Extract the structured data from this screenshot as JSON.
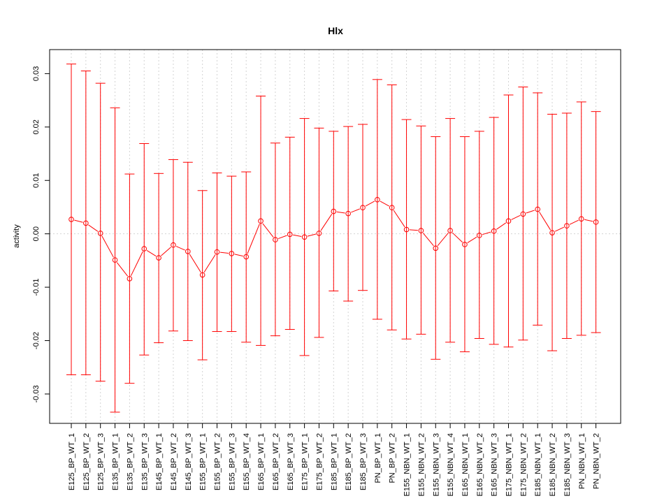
{
  "chart_data": {
    "type": "line",
    "title": "Hlx",
    "xlabel": "",
    "ylabel": "activity",
    "ylim": [
      -0.0355,
      0.0345
    ],
    "yticks": [
      -0.03,
      -0.02,
      -0.01,
      0.0,
      0.01,
      0.02,
      0.03
    ],
    "ytick_labels": [
      "-0.03",
      "-0.02",
      "-0.01",
      "0.00",
      "0.01",
      "0.02",
      "0.03"
    ],
    "grid": true,
    "series_color": "#ff0000",
    "grid_color": "#d3d3d3",
    "categories": [
      "E125_BP_WT_1",
      "E125_BP_WT_2",
      "E125_BP_WT_3",
      "E135_BP_WT_1",
      "E135_BP_WT_2",
      "E135_BP_WT_3",
      "E145_BP_WT_1",
      "E145_BP_WT_2",
      "E145_BP_WT_3",
      "E155_BP_WT_1",
      "E155_BP_WT_2",
      "E155_BP_WT_3",
      "E155_BP_WT_4",
      "E165_BP_WT_1",
      "E165_BP_WT_2",
      "E165_BP_WT_3",
      "E175_BP_WT_1",
      "E175_BP_WT_2",
      "E185_BP_WT_1",
      "E185_BP_WT_2",
      "E185_BP_WT_3",
      "PN_BP_WT_1",
      "PN_BP_WT_2",
      "E155_NBN_WT_1",
      "E155_NBN_WT_2",
      "E155_NBN_WT_3",
      "E155_NBN_WT_4",
      "E165_NBN_WT_1",
      "E165_NBN_WT_2",
      "E165_NBN_WT_3",
      "E175_NBN_WT_1",
      "E175_NBN_WT_2",
      "E185_NBN_WT_1",
      "E185_NBN_WT_2",
      "E185_NBN_WT_3",
      "PN_NBN_WT_1",
      "PN_NBN_WT_2"
    ],
    "values": [
      0.0027,
      0.002,
      0.0001,
      -0.0049,
      -0.0084,
      -0.0028,
      -0.0045,
      -0.0021,
      -0.0033,
      -0.0077,
      -0.0034,
      -0.0037,
      -0.0043,
      0.0024,
      -0.0011,
      -0.0001,
      -0.0006,
      0.0001,
      0.0042,
      0.0038,
      0.0049,
      0.0064,
      0.0049,
      0.0008,
      0.0006,
      -0.0027,
      0.0006,
      -0.002,
      -0.0003,
      0.0005,
      0.0024,
      0.0037,
      0.0046,
      0.0002,
      0.0015,
      0.0028,
      0.0022
    ],
    "upper": [
      0.0318,
      0.0305,
      0.0282,
      0.0236,
      0.0112,
      0.0169,
      0.0113,
      0.0139,
      0.0134,
      0.0081,
      0.0114,
      0.0108,
      0.0116,
      0.0258,
      0.017,
      0.0181,
      0.0216,
      0.0198,
      0.0192,
      0.0201,
      0.0205,
      0.0289,
      0.0279,
      0.0214,
      0.0202,
      0.0182,
      0.0216,
      0.0182,
      0.0192,
      0.0218,
      0.026,
      0.0275,
      0.0264,
      0.0224,
      0.0226,
      0.0247,
      0.0229
    ],
    "lower": [
      -0.0264,
      -0.0264,
      -0.0276,
      -0.0334,
      -0.028,
      -0.0227,
      -0.0204,
      -0.0182,
      -0.02,
      -0.0236,
      -0.0183,
      -0.0183,
      -0.0203,
      -0.0209,
      -0.0191,
      -0.0179,
      -0.0228,
      -0.0194,
      -0.0107,
      -0.0126,
      -0.0106,
      -0.016,
      -0.018,
      -0.0197,
      -0.0188,
      -0.0235,
      -0.0203,
      -0.0221,
      -0.0196,
      -0.0207,
      -0.0212,
      -0.0199,
      -0.0171,
      -0.0219,
      -0.0196,
      -0.019,
      -0.0185
    ]
  }
}
